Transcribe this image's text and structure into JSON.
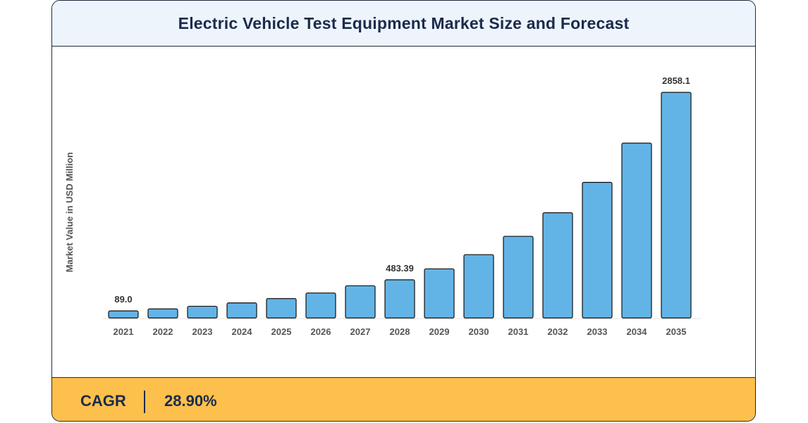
{
  "header": {
    "title": "Electric Vehicle Test Equipment Market Size and Forecast"
  },
  "footer": {
    "cagr_label": "CAGR",
    "cagr_value": "28.90%"
  },
  "colors": {
    "bar": "#63b4e6",
    "header_bg": "#eef4fc",
    "footer_bg": "#fdc04d",
    "title": "#1b2b4b"
  },
  "chart_data": {
    "type": "bar",
    "title": "Electric Vehicle Test Equipment Market Size and Forecast",
    "xlabel": "",
    "ylabel": "Market Value in USD Million",
    "categories": [
      "2021",
      "2022",
      "2023",
      "2024",
      "2025",
      "2026",
      "2027",
      "2028",
      "2029",
      "2030",
      "2031",
      "2032",
      "2033",
      "2034",
      "2035"
    ],
    "values": [
      89.0,
      114.7,
      147.9,
      190.6,
      245.7,
      316.7,
      408.2,
      483.39,
      622.4,
      802.3,
      1034.2,
      1333.1,
      1718.5,
      2215.2,
      2858.1
    ],
    "data_labels": [
      {
        "category": "2021",
        "text": "89.0"
      },
      {
        "category": "2028",
        "text": "483.39"
      },
      {
        "category": "2035",
        "text": "2858.1"
      }
    ],
    "ylim": [
      0,
      2858.1
    ],
    "grid": false,
    "legend": "none"
  }
}
